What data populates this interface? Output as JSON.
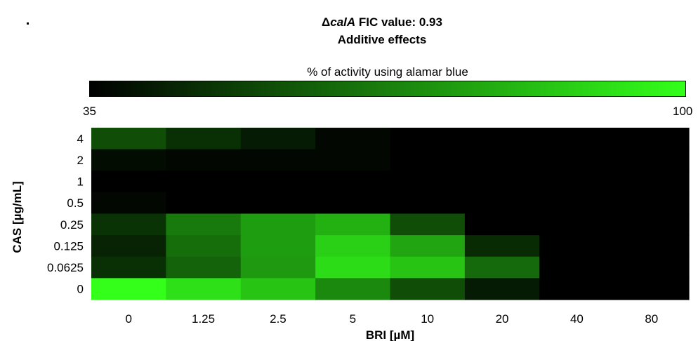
{
  "title_line1_prefix": "Δ",
  "title_line1_gene": "calA",
  "title_line1_suffix": " FIC value: 0.93",
  "title_line2": "Additive effects",
  "colorbar": {
    "label": "% of activity using alamar blue",
    "min_label": "35",
    "max_label": "100",
    "min": 35,
    "max": 100,
    "color_low": "#000000",
    "color_high": "#33ff1a"
  },
  "chart_data": {
    "type": "heatmap",
    "xlabel": "BRI [µM]",
    "ylabel": "CAS [µg/mL]",
    "x_categories": [
      "0",
      "1.25",
      "2.5",
      "5",
      "10",
      "20",
      "40",
      "80"
    ],
    "y_categories": [
      "4",
      "2",
      "1",
      "0.5",
      "0.25",
      "0.125",
      "0.0625",
      "0"
    ],
    "values": [
      [
        55,
        47,
        42,
        37,
        35,
        35,
        35,
        35
      ],
      [
        38,
        37,
        37,
        37,
        35,
        35,
        35,
        35
      ],
      [
        35,
        35,
        35,
        35,
        35,
        35,
        35,
        35
      ],
      [
        37,
        35,
        35,
        35,
        35,
        35,
        35,
        35
      ],
      [
        48,
        66,
        75,
        80,
        55,
        35,
        35,
        35
      ],
      [
        44,
        63,
        75,
        88,
        77,
        46,
        35,
        35
      ],
      [
        47,
        60,
        74,
        91,
        85,
        62,
        35,
        35
      ],
      [
        100,
        92,
        85,
        70,
        55,
        42,
        35,
        35
      ]
    ]
  }
}
